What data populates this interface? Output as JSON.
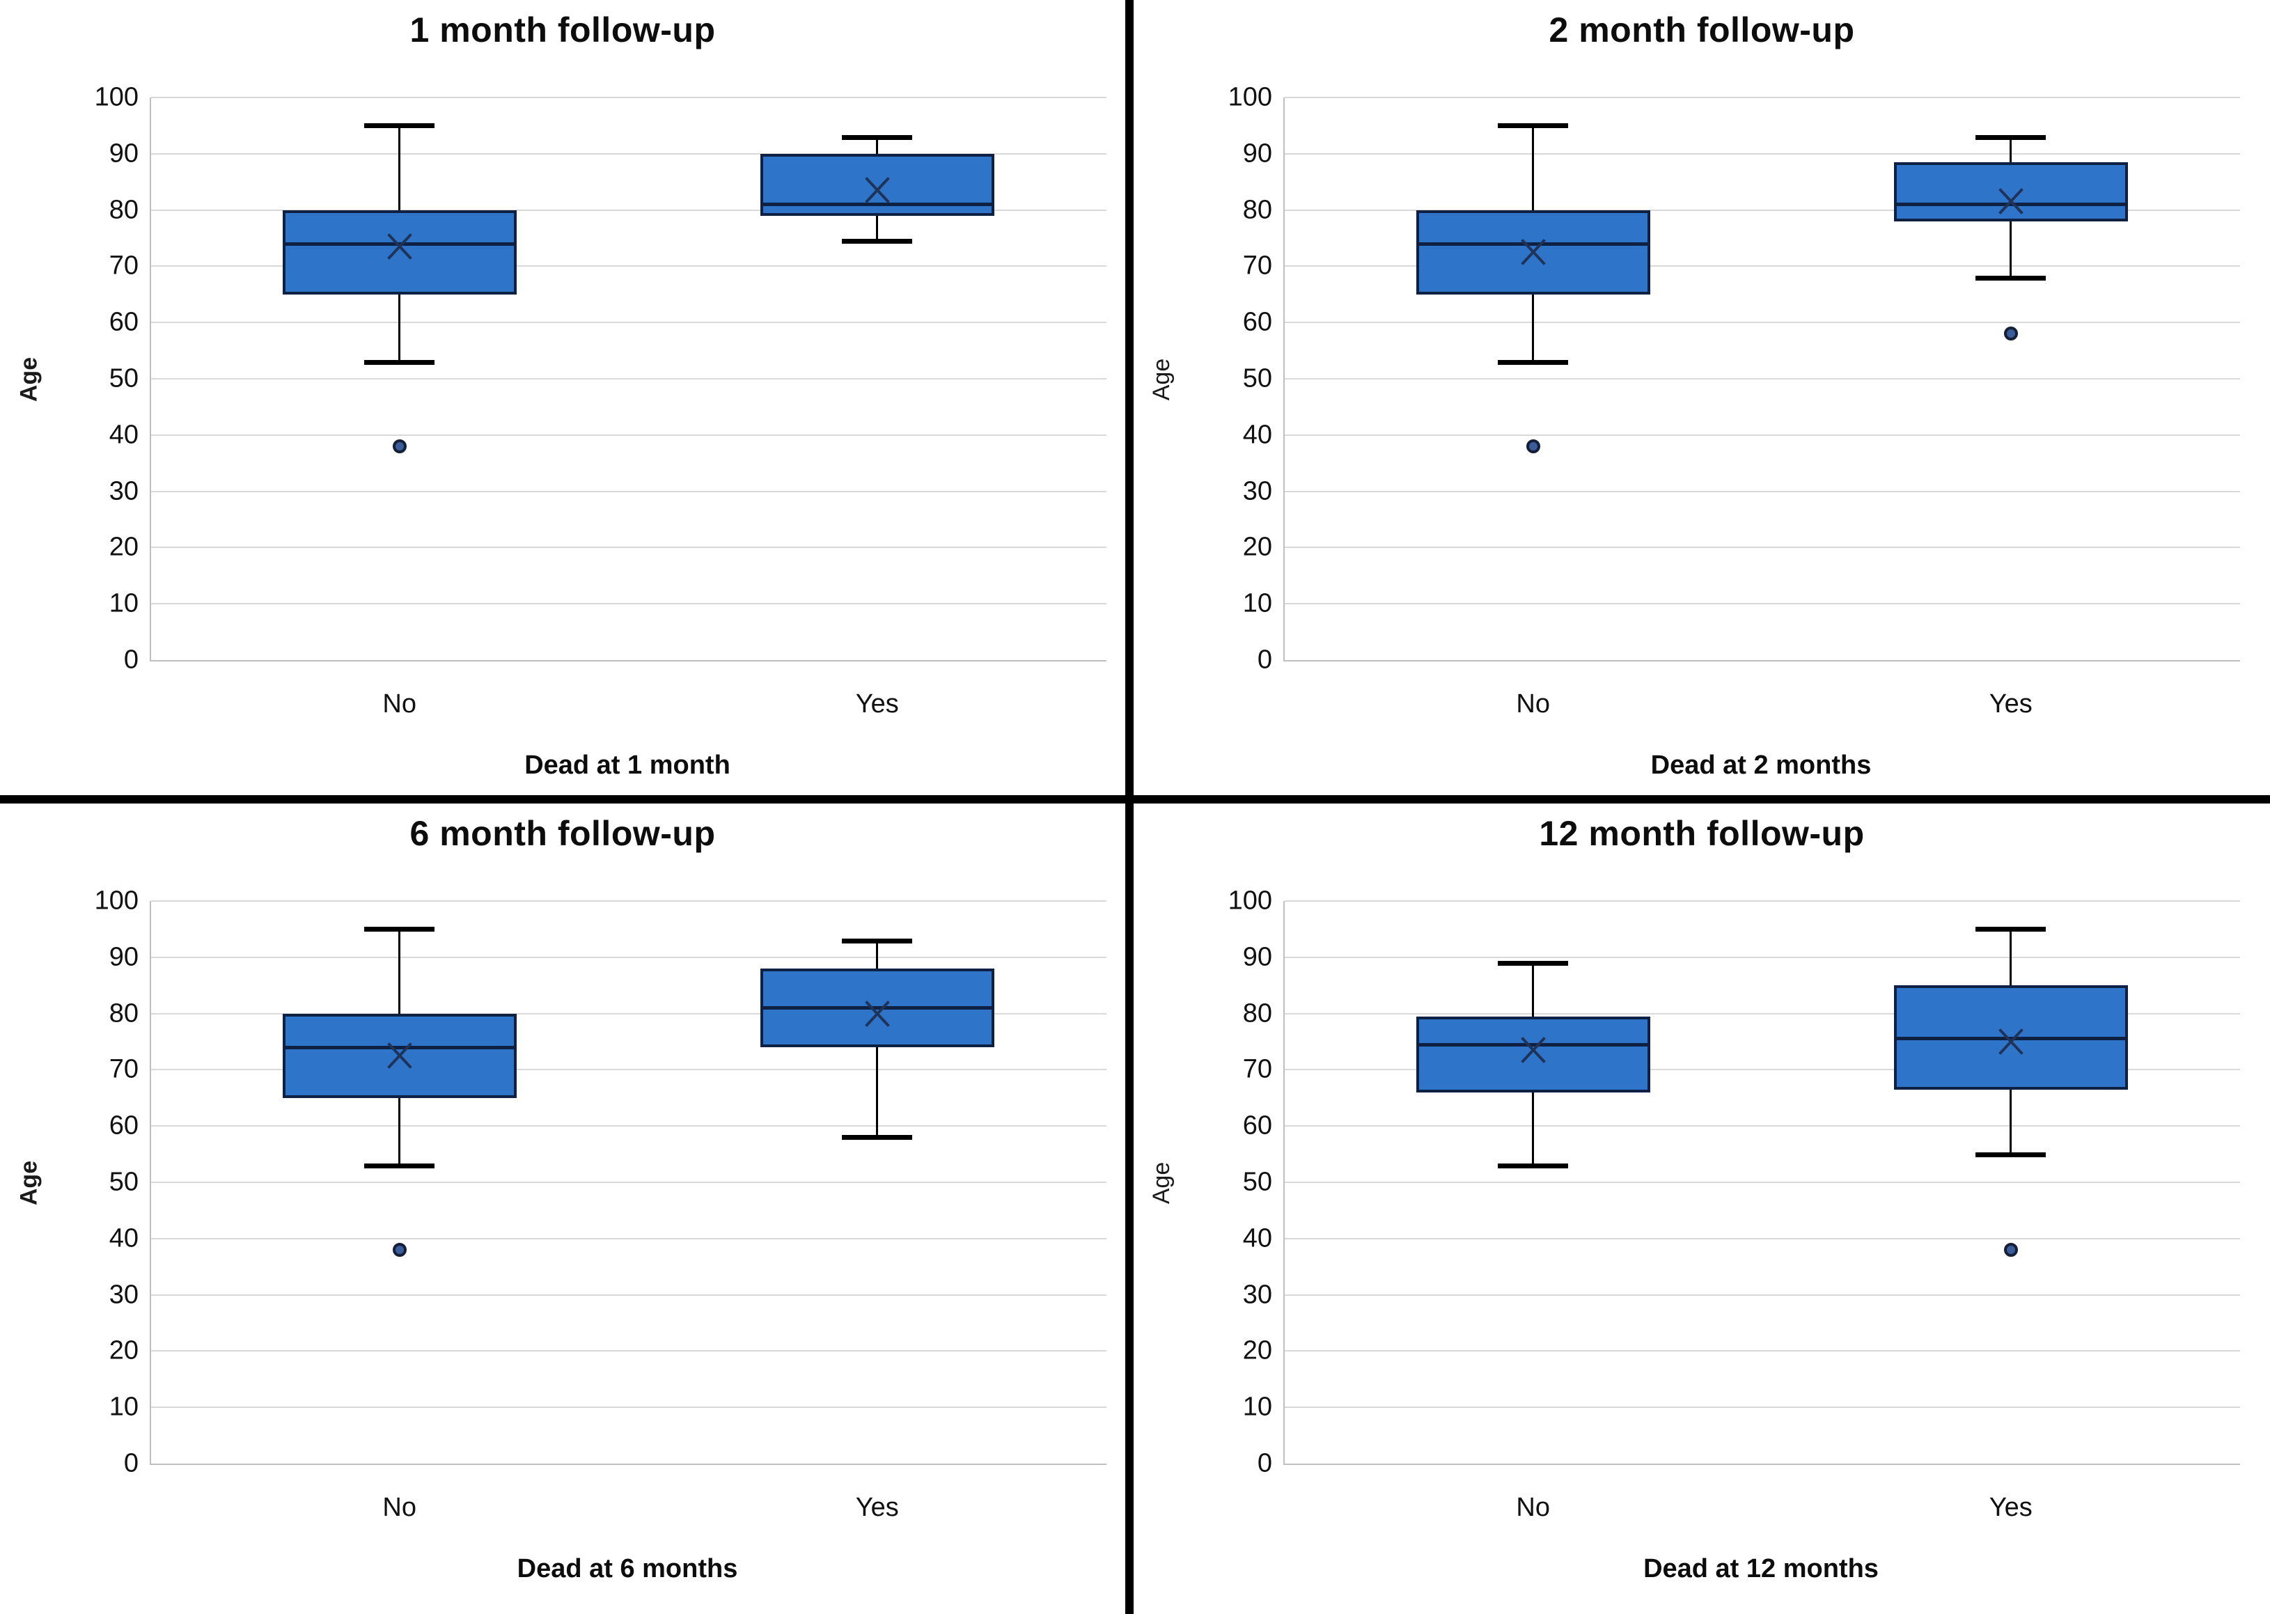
{
  "figure": {
    "layout": "2x2 panel figure separated by black cross divider"
  },
  "colors": {
    "box_fill": "#2E74C8",
    "box_border": "#0F2142",
    "whisker": "#000000",
    "median": "#0F2142",
    "mean_marker": "#1F3358",
    "outlier_fill": "#3A5C99",
    "outlier_border": "#151F38",
    "gridline": "#D9D9D9",
    "axis_line": "#BFBFBF",
    "divider": "#000000",
    "text": "#111111"
  },
  "chart_data": [
    {
      "type": "box",
      "title": "1 month follow-up",
      "xlabel": "Dead at 1 month",
      "ylabel": "Age",
      "ylim": [
        0,
        100
      ],
      "ytick_step": 10,
      "grid": "horizontal",
      "categories": [
        "No",
        "Yes"
      ],
      "boxes": [
        {
          "category": "No",
          "whisker_low": 53,
          "q1": 65,
          "median": 74,
          "q3": 80,
          "whisker_high": 95,
          "mean": 73.5,
          "outliers": [
            38
          ]
        },
        {
          "category": "Yes",
          "whisker_low": 74.5,
          "q1": 79,
          "median": 81,
          "q3": 90,
          "whisker_high": 93,
          "mean": 83.5,
          "outliers": []
        }
      ]
    },
    {
      "type": "box",
      "title": "2 month follow-up",
      "xlabel": "Dead at 2 months",
      "ylabel": "Age",
      "ylim": [
        0,
        100
      ],
      "ytick_step": 10,
      "grid": "horizontal",
      "categories": [
        "No",
        "Yes"
      ],
      "boxes": [
        {
          "category": "No",
          "whisker_low": 53,
          "q1": 65,
          "median": 74,
          "q3": 80,
          "whisker_high": 95,
          "mean": 72.5,
          "outliers": [
            38
          ]
        },
        {
          "category": "Yes",
          "whisker_low": 68,
          "q1": 78,
          "median": 81,
          "q3": 88.5,
          "whisker_high": 93,
          "mean": 81.5,
          "outliers": [
            58
          ]
        }
      ]
    },
    {
      "type": "box",
      "title": "6 month follow-up",
      "xlabel": "Dead at 6 months",
      "ylabel": "Age",
      "ylim": [
        0,
        100
      ],
      "ytick_step": 10,
      "grid": "horizontal",
      "categories": [
        "No",
        "Yes"
      ],
      "boxes": [
        {
          "category": "No",
          "whisker_low": 53,
          "q1": 65,
          "median": 74,
          "q3": 80,
          "whisker_high": 95,
          "mean": 72.5,
          "outliers": [
            38
          ]
        },
        {
          "category": "Yes",
          "whisker_low": 58,
          "q1": 74,
          "median": 81,
          "q3": 88,
          "whisker_high": 93,
          "mean": 80,
          "outliers": []
        }
      ]
    },
    {
      "type": "box",
      "title": "12 month follow-up",
      "xlabel": "Dead at 12 months",
      "ylabel": "Age",
      "ylim": [
        0,
        100
      ],
      "ytick_step": 10,
      "grid": "horizontal",
      "categories": [
        "No",
        "Yes"
      ],
      "boxes": [
        {
          "category": "No",
          "whisker_low": 53,
          "q1": 66,
          "median": 74.5,
          "q3": 79.5,
          "whisker_high": 89,
          "mean": 73.5,
          "outliers": []
        },
        {
          "category": "Yes",
          "whisker_low": 55,
          "q1": 66.5,
          "median": 75.5,
          "q3": 85,
          "whisker_high": 95,
          "mean": 75,
          "outliers": [
            38
          ]
        }
      ]
    }
  ]
}
